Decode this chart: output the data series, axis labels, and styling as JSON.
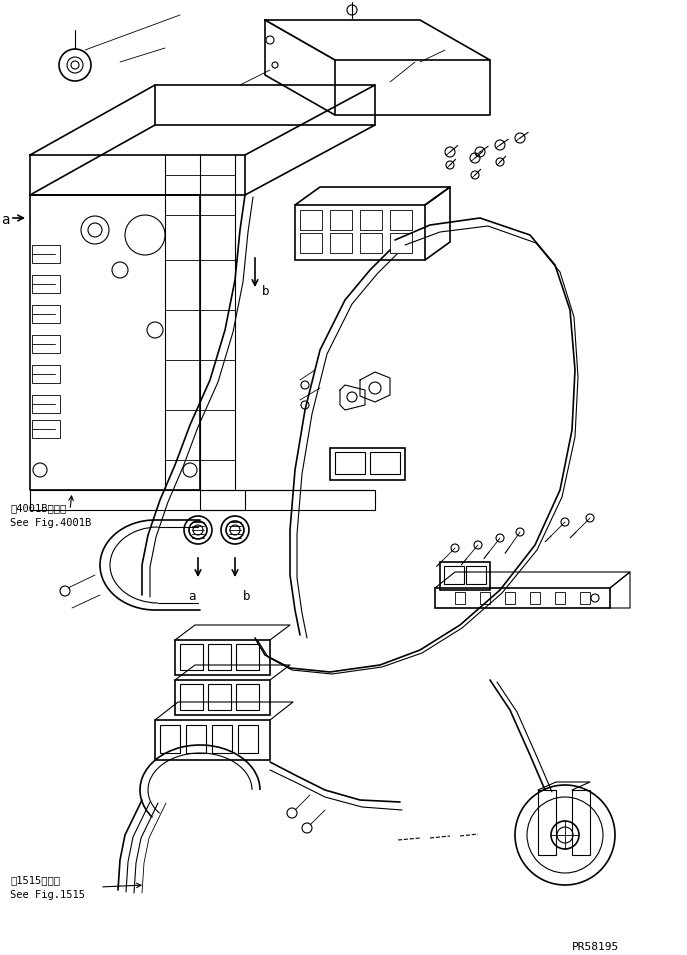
{
  "background_color": "#ffffff",
  "line_color": "#000000",
  "fig_width": 6.87,
  "fig_height": 9.55,
  "dpi": 100,
  "text_4001B_1": "第4001B図参照",
  "text_4001B_2": "See Fig.4001B",
  "text_1515_1": "第1515図参照",
  "text_1515_2": "See Fig.1515",
  "watermark": "PR58195",
  "label_a": "a",
  "label_b": "b"
}
